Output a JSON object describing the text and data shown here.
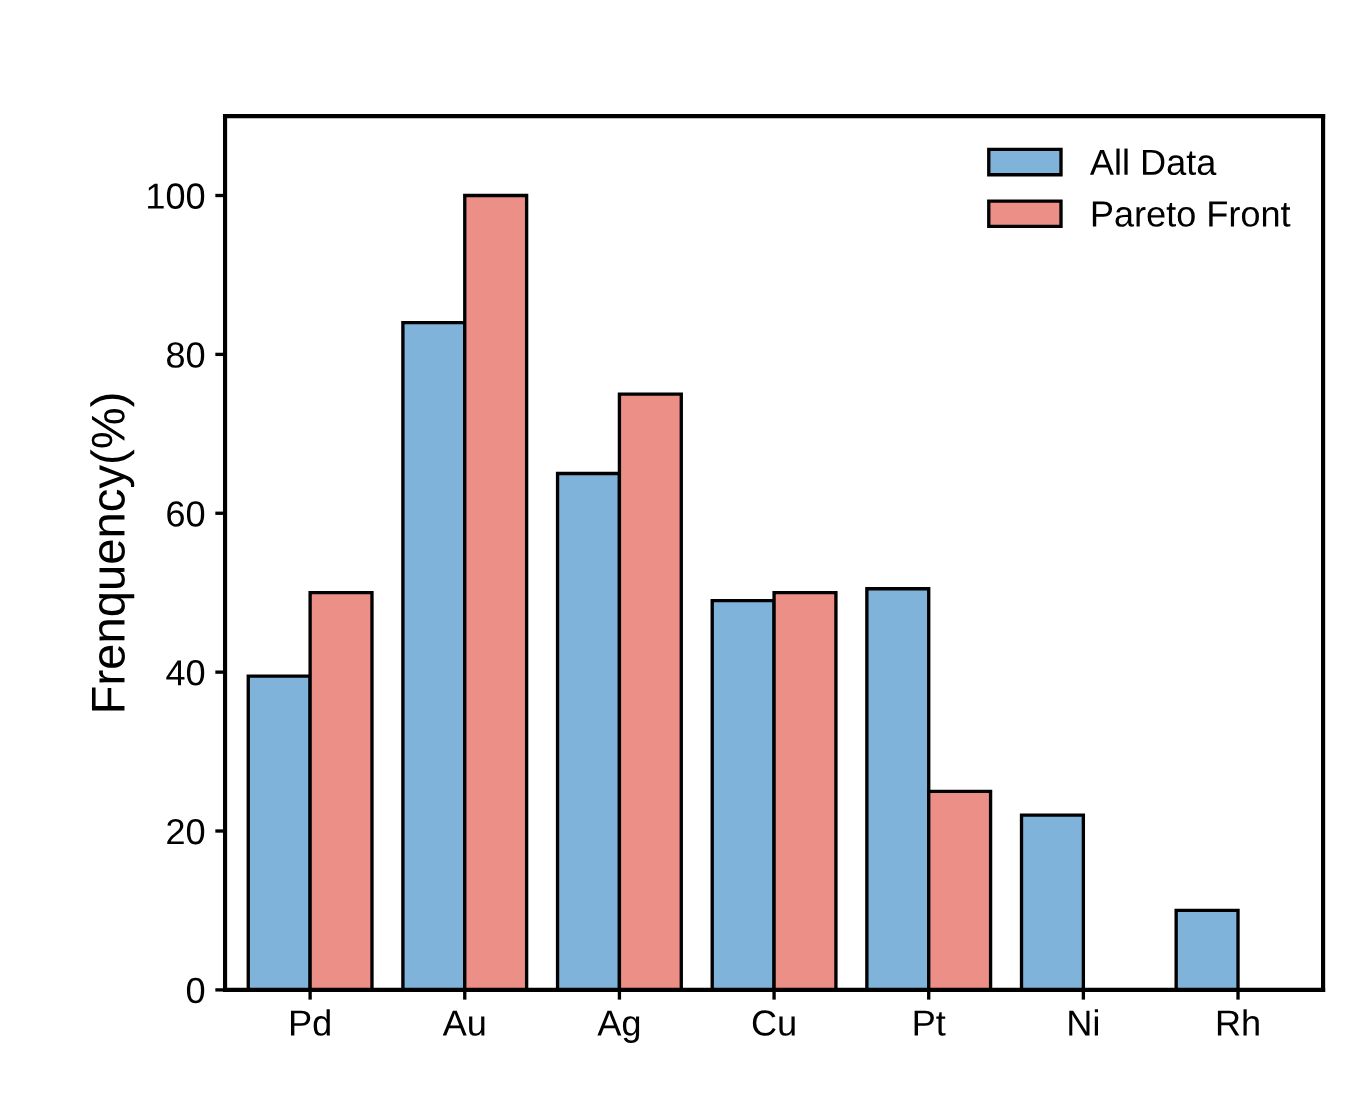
{
  "chart_data": {
    "type": "bar",
    "ylabel": "Frenquency(%)",
    "categories": [
      "Pd",
      "Au",
      "Ag",
      "Cu",
      "Pt",
      "Ni",
      "Rh"
    ],
    "series": [
      {
        "name": "All Data",
        "color": "#7fb3d9",
        "values": [
          39.5,
          84,
          65,
          49,
          50.5,
          22,
          10
        ]
      },
      {
        "name": "Pareto Front",
        "color": "#ec8f86",
        "values": [
          50,
          100,
          75,
          50,
          25,
          null,
          null
        ]
      }
    ],
    "ylim": [
      0,
      110
    ],
    "yticks": [
      0,
      20,
      40,
      60,
      80,
      100
    ],
    "grid": false,
    "legend": "top right"
  }
}
